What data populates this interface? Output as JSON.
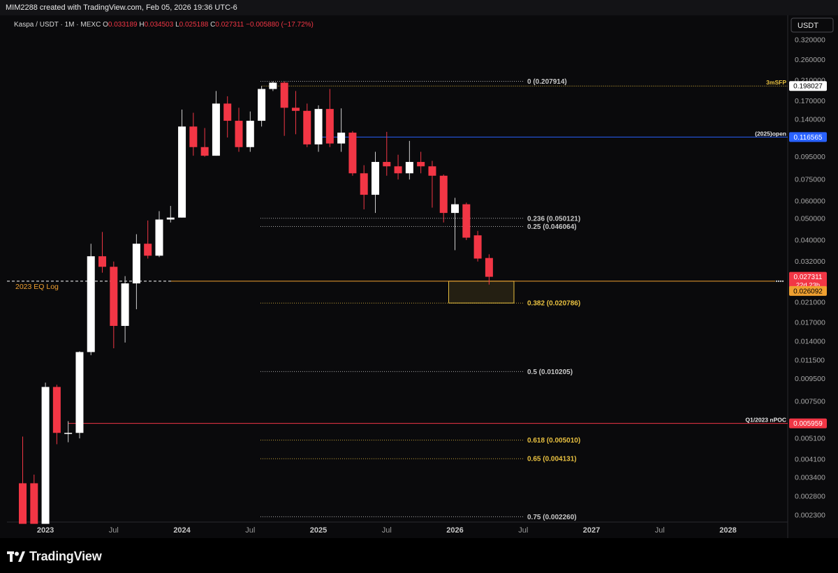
{
  "watermark_text": "MIM2288 created with TradingView.com, Feb 05, 2026 19:36 UTC-6",
  "brand": "TradingView",
  "chart_data": {
    "type": "candlestick",
    "symbol": "Kaspa / USDT · 1M · MEXC",
    "ohlc_header": {
      "o_label": "O",
      "o": "0.033189",
      "h_label": "H",
      "h": "0.034503",
      "l_label": "L",
      "l": "0.025188",
      "c_label": "C",
      "c": "0.027311",
      "change": "−0.005880 (−17.72%)"
    },
    "currency": "USDT",
    "y_scale": "log",
    "y_range": [
      0.0021,
      0.34
    ],
    "x_axis_labels": [
      {
        "label": "2023",
        "date": "2023-01"
      },
      {
        "label": "Jul",
        "date": "2023-07"
      },
      {
        "label": "2024",
        "date": "2024-01"
      },
      {
        "label": "Jul",
        "date": "2024-07"
      },
      {
        "label": "2025",
        "date": "2025-01"
      },
      {
        "label": "Jul",
        "date": "2025-07"
      },
      {
        "label": "2026",
        "date": "2026-01"
      },
      {
        "label": "Jul",
        "date": "2026-07"
      },
      {
        "label": "2027",
        "date": "2027-01"
      },
      {
        "label": "Jul",
        "date": "2027-07"
      },
      {
        "label": "2028",
        "date": "2028-01"
      }
    ],
    "y_ticks": [
      {
        "label": "0.320000",
        "value": 0.32
      },
      {
        "label": "0.260000",
        "value": 0.26
      },
      {
        "label": "0.210000",
        "value": 0.21
      },
      {
        "label": "0.170000",
        "value": 0.17
      },
      {
        "label": "0.140000",
        "value": 0.14
      },
      {
        "label": "0.115000",
        "value": 0.115
      },
      {
        "label": "0.095000",
        "value": 0.095
      },
      {
        "label": "0.075000",
        "value": 0.075
      },
      {
        "label": "0.060000",
        "value": 0.06
      },
      {
        "label": "0.050000",
        "value": 0.05
      },
      {
        "label": "0.040000",
        "value": 0.04
      },
      {
        "label": "0.032000",
        "value": 0.032
      },
      {
        "label": "0.021000",
        "value": 0.021
      },
      {
        "label": "0.017000",
        "value": 0.017
      },
      {
        "label": "0.014000",
        "value": 0.014
      },
      {
        "label": "0.011500",
        "value": 0.0115
      },
      {
        "label": "0.009500",
        "value": 0.0095
      },
      {
        "label": "0.007500",
        "value": 0.0075
      },
      {
        "label": "0.005100",
        "value": 0.0051
      },
      {
        "label": "0.004100",
        "value": 0.0041
      },
      {
        "label": "0.003400",
        "value": 0.0034
      },
      {
        "label": "0.002800",
        "value": 0.0028
      },
      {
        "label": "0.002300",
        "value": 0.0023
      }
    ],
    "candles": [
      {
        "date": "2022-11",
        "o": 0.0032,
        "h": 0.0052,
        "l": 0.0021,
        "c": 0.0021
      },
      {
        "date": "2022-12",
        "o": 0.0032,
        "h": 0.0035,
        "l": 0.0021,
        "c": 0.0021
      },
      {
        "date": "2023-01",
        "o": 0.0021,
        "h": 0.0091,
        "l": 0.0021,
        "c": 0.0087
      },
      {
        "date": "2023-02",
        "o": 0.0087,
        "h": 0.0089,
        "l": 0.0048,
        "c": 0.0054
      },
      {
        "date": "2023-03",
        "o": 0.0054,
        "h": 0.0061,
        "l": 0.0049,
        "c": 0.0054
      },
      {
        "date": "2023-04",
        "o": 0.0054,
        "h": 0.0126,
        "l": 0.0051,
        "c": 0.0125
      },
      {
        "date": "2023-05",
        "o": 0.0125,
        "h": 0.0385,
        "l": 0.0121,
        "c": 0.0338
      },
      {
        "date": "2023-06",
        "o": 0.0338,
        "h": 0.0435,
        "l": 0.0285,
        "c": 0.0303
      },
      {
        "date": "2023-07",
        "o": 0.0303,
        "h": 0.032,
        "l": 0.013,
        "c": 0.0164
      },
      {
        "date": "2023-08",
        "o": 0.0164,
        "h": 0.0275,
        "l": 0.0138,
        "c": 0.0255
      },
      {
        "date": "2023-09",
        "o": 0.0255,
        "h": 0.0425,
        "l": 0.0195,
        "c": 0.0385
      },
      {
        "date": "2023-10",
        "o": 0.0385,
        "h": 0.049,
        "l": 0.033,
        "c": 0.034
      },
      {
        "date": "2023-11",
        "o": 0.034,
        "h": 0.054,
        "l": 0.0335,
        "c": 0.0495
      },
      {
        "date": "2023-12",
        "o": 0.0495,
        "h": 0.057,
        "l": 0.048,
        "c": 0.0505
      },
      {
        "date": "2024-01",
        "o": 0.0505,
        "h": 0.155,
        "l": 0.0505,
        "c": 0.13
      },
      {
        "date": "2024-02",
        "o": 0.13,
        "h": 0.15,
        "l": 0.096,
        "c": 0.105
      },
      {
        "date": "2024-03",
        "o": 0.105,
        "h": 0.128,
        "l": 0.095,
        "c": 0.096
      },
      {
        "date": "2024-04",
        "o": 0.096,
        "h": 0.188,
        "l": 0.096,
        "c": 0.165
      },
      {
        "date": "2024-05",
        "o": 0.165,
        "h": 0.178,
        "l": 0.116,
        "c": 0.138
      },
      {
        "date": "2024-06",
        "o": 0.138,
        "h": 0.158,
        "l": 0.1,
        "c": 0.105
      },
      {
        "date": "2024-07",
        "o": 0.105,
        "h": 0.152,
        "l": 0.1,
        "c": 0.138
      },
      {
        "date": "2024-08",
        "o": 0.138,
        "h": 0.198,
        "l": 0.13,
        "c": 0.192
      },
      {
        "date": "2024-09",
        "o": 0.192,
        "h": 0.208,
        "l": 0.188,
        "c": 0.205
      },
      {
        "date": "2024-10",
        "o": 0.205,
        "h": 0.208,
        "l": 0.118,
        "c": 0.158
      },
      {
        "date": "2024-11",
        "o": 0.158,
        "h": 0.188,
        "l": 0.12,
        "c": 0.153
      },
      {
        "date": "2024-12",
        "o": 0.153,
        "h": 0.165,
        "l": 0.105,
        "c": 0.108
      },
      {
        "date": "2025-01",
        "o": 0.108,
        "h": 0.162,
        "l": 0.1,
        "c": 0.156
      },
      {
        "date": "2025-02",
        "o": 0.156,
        "h": 0.192,
        "l": 0.105,
        "c": 0.109
      },
      {
        "date": "2025-03",
        "o": 0.109,
        "h": 0.157,
        "l": 0.1,
        "c": 0.122
      },
      {
        "date": "2025-04",
        "o": 0.122,
        "h": 0.124,
        "l": 0.078,
        "c": 0.08
      },
      {
        "date": "2025-05",
        "o": 0.08,
        "h": 0.087,
        "l": 0.055,
        "c": 0.064
      },
      {
        "date": "2025-06",
        "o": 0.064,
        "h": 0.1,
        "l": 0.053,
        "c": 0.09
      },
      {
        "date": "2025-07",
        "o": 0.09,
        "h": 0.123,
        "l": 0.078,
        "c": 0.086
      },
      {
        "date": "2025-08",
        "o": 0.086,
        "h": 0.097,
        "l": 0.075,
        "c": 0.08
      },
      {
        "date": "2025-09",
        "o": 0.08,
        "h": 0.112,
        "l": 0.075,
        "c": 0.09
      },
      {
        "date": "2025-10",
        "o": 0.09,
        "h": 0.1,
        "l": 0.08,
        "c": 0.086
      },
      {
        "date": "2025-11",
        "o": 0.086,
        "h": 0.091,
        "l": 0.056,
        "c": 0.078
      },
      {
        "date": "2025-12",
        "o": 0.078,
        "h": 0.079,
        "l": 0.048,
        "c": 0.053
      },
      {
        "date": "2026-01",
        "o": 0.053,
        "h": 0.062,
        "l": 0.036,
        "c": 0.058
      },
      {
        "date": "2026-02",
        "o": 0.058,
        "h": 0.059,
        "l": 0.04,
        "c": 0.041
      },
      {
        "date": "2026-03",
        "o": 0.042,
        "h": 0.044,
        "l": 0.032,
        "c": 0.033
      },
      {
        "date": "2026-04",
        "o": 0.033189,
        "h": 0.034503,
        "l": 0.025188,
        "c": 0.027311
      }
    ],
    "fib_levels": [
      {
        "label": "0 (0.207914)",
        "value": 0.207914,
        "color": "#c8c8c8"
      },
      {
        "label": "0.236 (0.050121)",
        "value": 0.050121,
        "color": "#c8c8c8"
      },
      {
        "label": "0.25 (0.046064)",
        "value": 0.046064,
        "color": "#c8c8c8"
      },
      {
        "label": "0.382 (0.020786)",
        "value": 0.020786,
        "color": "#e8c040"
      },
      {
        "label": "0.5 (0.010205)",
        "value": 0.010205,
        "color": "#c8c8c8"
      },
      {
        "label": "0.618 (0.005010)",
        "value": 0.00501,
        "color": "#e8c040"
      },
      {
        "label": "0.65 (0.004131)",
        "value": 0.004131,
        "color": "#e8c040"
      },
      {
        "label": "0.75 (0.002260)",
        "value": 0.00226,
        "color": "#c8c8c8"
      }
    ],
    "horizontal_lines": [
      {
        "label": "3mSFP",
        "value": 0.198027,
        "tag": "0.198027",
        "color": "#e8c040",
        "tag_bg": "#ffffff",
        "tag_fg": "#000000",
        "style": "dotted",
        "from": "2024-08"
      },
      {
        "label": "(2025)open",
        "value": 0.116565,
        "tag": "0.116565",
        "color": "#2962ff",
        "tag_bg": "#2962ff",
        "tag_fg": "#ffffff",
        "style": "solid",
        "from": "2025-01"
      },
      {
        "label": "Q1/2023 nPOC",
        "value": 0.005959,
        "tag": "0.005959",
        "color": "#f23645",
        "tag_bg": "#f23645",
        "tag_fg": "#ffffff",
        "style": "solid",
        "from": "2023-03"
      }
    ],
    "eq_line": {
      "label": "2023 EQ Log",
      "value": 0.02609,
      "color": "#f0a030"
    },
    "current_price": {
      "value": 0.027311,
      "tag": "0.027311",
      "countdown": "22d 23h",
      "color": "#f23645"
    },
    "eq_tag": {
      "value": 0.026092,
      "tag": "0.026092",
      "color": "#f0a030"
    },
    "zone": {
      "from_date": "2026-01",
      "to_date": "2026-06",
      "top": 0.0261,
      "bottom": 0.0208
    }
  }
}
